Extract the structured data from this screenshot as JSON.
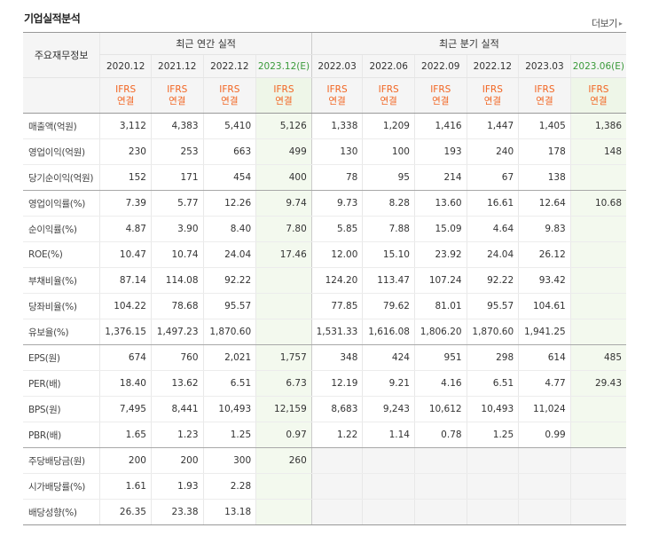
{
  "section": {
    "title": "기업실적분석",
    "more_label": "더보기",
    "more_arrow": "▸"
  },
  "table": {
    "row_header_label": "주요재무정보",
    "annual_group_label": "최근 연간 실적",
    "quarter_group_label": "최근 분기 실적",
    "periods": [
      "2020.12",
      "2021.12",
      "2022.12",
      "2023.12(E)",
      "2022.03",
      "2022.06",
      "2022.09",
      "2022.12",
      "2023.03",
      "2023.06(E)"
    ],
    "basis_top": "IFRS",
    "basis_bottom": "연결",
    "rows": [
      {
        "label": "매출액(억원)",
        "values": [
          "3,112",
          "4,383",
          "5,410",
          "5,126",
          "1,338",
          "1,209",
          "1,416",
          "1,447",
          "1,405",
          "1,386"
        ]
      },
      {
        "label": "영업이익(억원)",
        "values": [
          "230",
          "253",
          "663",
          "499",
          "130",
          "100",
          "193",
          "240",
          "178",
          "148"
        ]
      },
      {
        "label": "당기순이익(억원)",
        "values": [
          "152",
          "171",
          "454",
          "400",
          "78",
          "95",
          "214",
          "67",
          "138",
          ""
        ]
      },
      {
        "label": "영업이익률(%)",
        "values": [
          "7.39",
          "5.77",
          "12.26",
          "9.74",
          "9.73",
          "8.28",
          "13.60",
          "16.61",
          "12.64",
          "10.68"
        ]
      },
      {
        "label": "순이익률(%)",
        "values": [
          "4.87",
          "3.90",
          "8.40",
          "7.80",
          "5.85",
          "7.88",
          "15.09",
          "4.64",
          "9.83",
          ""
        ]
      },
      {
        "label": "ROE(%)",
        "values": [
          "10.47",
          "10.74",
          "24.04",
          "17.46",
          "12.00",
          "15.10",
          "23.92",
          "24.04",
          "26.12",
          ""
        ]
      },
      {
        "label": "부채비율(%)",
        "values": [
          "87.14",
          "114.08",
          "92.22",
          "",
          "124.20",
          "113.47",
          "107.24",
          "92.22",
          "93.42",
          ""
        ]
      },
      {
        "label": "당좌비율(%)",
        "values": [
          "104.22",
          "78.68",
          "95.57",
          "",
          "77.85",
          "79.62",
          "81.01",
          "95.57",
          "104.61",
          ""
        ]
      },
      {
        "label": "유보율(%)",
        "values": [
          "1,376.15",
          "1,497.23",
          "1,870.60",
          "",
          "1,531.33",
          "1,616.08",
          "1,806.20",
          "1,870.60",
          "1,941.25",
          ""
        ]
      },
      {
        "label": "EPS(원)",
        "values": [
          "674",
          "760",
          "2,021",
          "1,757",
          "348",
          "424",
          "951",
          "298",
          "614",
          "485"
        ]
      },
      {
        "label": "PER(배)",
        "values": [
          "18.40",
          "13.62",
          "6.51",
          "6.73",
          "12.19",
          "9.21",
          "4.16",
          "6.51",
          "4.77",
          "29.43"
        ]
      },
      {
        "label": "BPS(원)",
        "values": [
          "7,495",
          "8,441",
          "10,493",
          "12,159",
          "8,683",
          "9,243",
          "10,612",
          "10,493",
          "11,024",
          ""
        ]
      },
      {
        "label": "PBR(배)",
        "values": [
          "1.65",
          "1.23",
          "1.25",
          "0.97",
          "1.22",
          "1.14",
          "0.78",
          "1.25",
          "0.99",
          ""
        ]
      },
      {
        "label": "주당배당금(원)",
        "values": [
          "200",
          "200",
          "300",
          "260",
          "",
          "",
          "",
          "",
          "",
          ""
        ]
      },
      {
        "label": "시가배당률(%)",
        "values": [
          "1.61",
          "1.93",
          "2.28",
          "",
          "",
          "",
          "",
          "",
          "",
          ""
        ]
      },
      {
        "label": "배당성향(%)",
        "values": [
          "26.35",
          "23.38",
          "13.18",
          "",
          "",
          "",
          "",
          "",
          "",
          ""
        ]
      }
    ]
  },
  "colors": {
    "basis_text": "#f26522",
    "estimate_text": "#3a9a3a",
    "estimate_bg": "#f3f9ee",
    "header_bg": "#f5f5f5"
  }
}
